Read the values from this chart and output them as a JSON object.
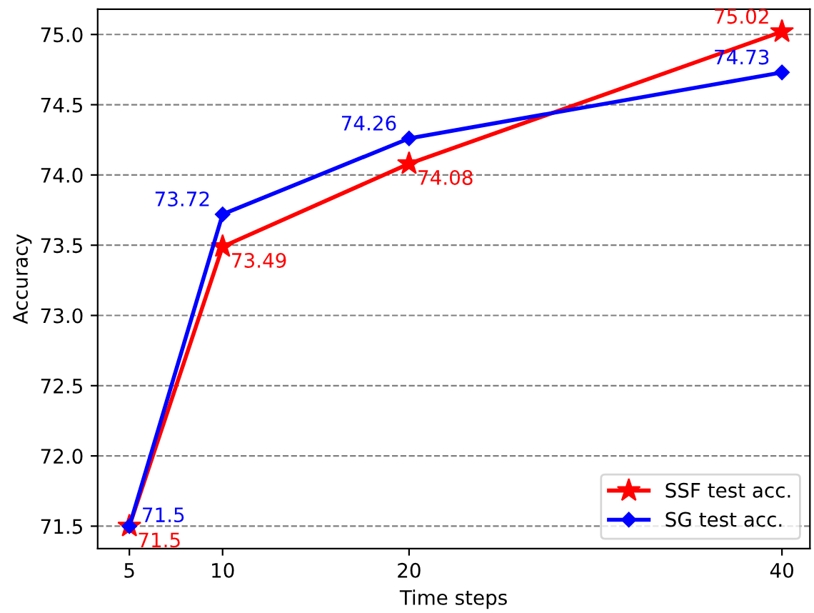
{
  "chart_data": {
    "type": "line",
    "xlabel": "Time steps",
    "ylabel": "Accuracy",
    "x": [
      5,
      10,
      20,
      40
    ],
    "series": [
      {
        "name": "SSF test acc.",
        "color": "#ff0000",
        "marker": "star",
        "values": [
          71.5,
          73.49,
          74.08,
          75.02
        ]
      },
      {
        "name": "SG test acc.",
        "color": "#0000ff",
        "marker": "diamond",
        "values": [
          71.5,
          73.72,
          74.26,
          74.73
        ]
      }
    ],
    "xlim": [
      3.3,
      41.5
    ],
    "ylim": [
      71.34,
      75.18
    ],
    "xticks": [
      5,
      10,
      20,
      40
    ],
    "yticks": [
      71.5,
      {
        "value": 72,
        "label": "72.0"
      },
      72.5,
      {
        "value": 73,
        "label": "73.0"
      },
      73.5,
      {
        "value": 74,
        "label": "74.0"
      },
      74.5,
      {
        "value": 75,
        "label": "75.0"
      }
    ],
    "grid": "y",
    "legend": "bottom right",
    "data_labels": true,
    "line_style": "solid"
  }
}
